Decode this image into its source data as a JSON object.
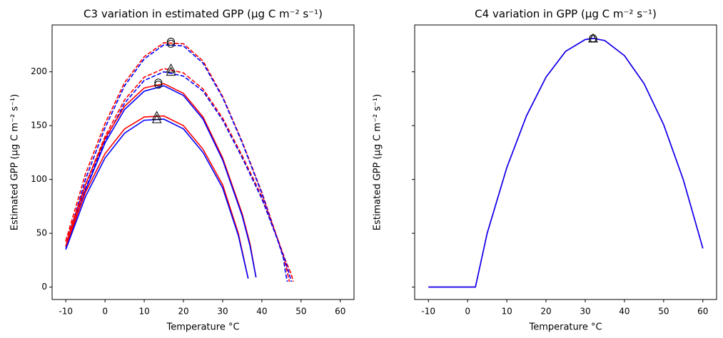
{
  "chart_data": [
    {
      "type": "line",
      "title": "C3 variation in estimated GPP   (μg C m⁻² s⁻¹)",
      "x_label": "Temperature °C",
      "y_label": "Estimated GPP   (μg C m⁻² s⁻¹)",
      "xlim": [
        -13.5,
        63.5
      ],
      "ylim": [
        -11.5,
        243.5
      ],
      "xticks": [
        -10,
        0,
        10,
        20,
        30,
        40,
        50,
        60
      ],
      "yticks": [
        0,
        50,
        100,
        150,
        200
      ],
      "show_ytick_labels": true,
      "series": [
        {
          "color": "#ff0000",
          "dash": true,
          "x": [
            -10,
            -5,
            0,
            5,
            10,
            15,
            20,
            25,
            30,
            35,
            40,
            44,
            46,
            47.5,
            48
          ],
          "values": [
            43,
            105,
            152,
            190,
            214,
            227,
            226,
            210,
            177,
            135,
            88,
            45,
            25,
            12,
            5
          ]
        },
        {
          "color": "#0000ff",
          "dash": true,
          "x": [
            -10,
            -5,
            0,
            5,
            10,
            15,
            20,
            25,
            30,
            35,
            40,
            44,
            46,
            47,
            47.5
          ],
          "values": [
            38,
            100,
            148,
            187,
            212,
            225,
            224,
            208,
            176,
            134,
            87,
            44,
            24,
            12,
            5
          ]
        },
        {
          "color": "#ff0000",
          "dash": true,
          "x": [
            -10,
            -5,
            0,
            5,
            10,
            15,
            20,
            25,
            30,
            35,
            40,
            44,
            45.5,
            46.5,
            47
          ],
          "values": [
            42,
            95,
            140,
            174,
            195,
            203,
            199,
            184,
            157,
            122,
            84,
            45,
            28,
            14,
            5
          ]
        },
        {
          "color": "#0000ff",
          "dash": true,
          "x": [
            -10,
            -5,
            0,
            5,
            10,
            15,
            20,
            25,
            30,
            35,
            40,
            44,
            45.5,
            46,
            46.5
          ],
          "values": [
            37,
            91,
            136,
            171,
            192,
            200,
            196,
            182,
            155,
            120,
            82,
            44,
            27,
            14,
            5
          ]
        },
        {
          "color": "#ff0000",
          "dash": false,
          "x": [
            -10,
            -5,
            0,
            5,
            10,
            15,
            20,
            25,
            30,
            35,
            37,
            38.5
          ],
          "values": [
            38,
            95,
            138,
            168,
            185,
            189,
            180,
            158,
            120,
            68,
            40,
            9
          ]
        },
        {
          "color": "#0000ff",
          "dash": false,
          "x": [
            -10,
            -5,
            0,
            5,
            10,
            15,
            20,
            25,
            30,
            35,
            37,
            38.5
          ],
          "values": [
            35,
            90,
            134,
            165,
            182,
            187,
            178,
            156,
            118,
            66,
            38,
            9
          ]
        },
        {
          "color": "#ff0000",
          "dash": false,
          "x": [
            -10,
            -5,
            0,
            5,
            10,
            15,
            20,
            25,
            30,
            34,
            36.5
          ],
          "values": [
            38,
            88,
            124,
            147,
            158,
            159,
            150,
            128,
            95,
            50,
            8
          ]
        },
        {
          "color": "#0000ff",
          "dash": false,
          "x": [
            -10,
            -5,
            0,
            5,
            10,
            15,
            20,
            25,
            30,
            34,
            36.5
          ],
          "values": [
            35,
            84,
            120,
            143,
            155,
            156,
            147,
            125,
            92,
            48,
            8
          ]
        }
      ],
      "markers": [
        {
          "marker": "circle",
          "x": [
            16.8,
            16.8,
            13.6,
            13.6
          ],
          "values": [
            228,
            226,
            190,
            188
          ]
        },
        {
          "marker": "triangle",
          "x": [
            16.8,
            16.8,
            13.2,
            13.2
          ],
          "values": [
            203,
            200,
            159,
            156
          ]
        }
      ]
    },
    {
      "type": "line",
      "title": "C4 variation in GPP   (μg C m⁻² s⁻¹)",
      "x_label": "Temperature °C",
      "y_label": "Estimated GPP   (μg C m⁻² s⁻¹)",
      "xlim": [
        -13.5,
        63.5
      ],
      "ylim": [
        -11.5,
        243.5
      ],
      "xticks": [
        -10,
        0,
        10,
        20,
        30,
        40,
        50,
        60
      ],
      "yticks": [
        0,
        50,
        100,
        150,
        200
      ],
      "show_ytick_labels": false,
      "series": [
        {
          "color": "#ff0000",
          "dash": false,
          "x": [
            -10,
            2,
            5,
            10,
            15,
            20,
            25,
            30,
            32,
            35,
            40,
            45,
            50,
            55,
            60
          ],
          "values": [
            0,
            0,
            50,
            111,
            159,
            195,
            219,
            230,
            231,
            229,
            215,
            189,
            151,
            100,
            36
          ]
        },
        {
          "color": "#0000ff",
          "dash": false,
          "x": [
            -10,
            2,
            5,
            10,
            15,
            20,
            25,
            30,
            32,
            35,
            40,
            45,
            50,
            55,
            60
          ],
          "values": [
            0,
            0,
            50,
            111,
            159,
            195,
            219,
            230,
            231,
            229,
            215,
            189,
            151,
            100,
            36
          ]
        }
      ],
      "markers": [
        {
          "marker": "circle",
          "x": [
            32,
            32
          ],
          "values": [
            231,
            231
          ]
        },
        {
          "marker": "triangle",
          "x": [
            32,
            32
          ],
          "values": [
            231,
            231
          ]
        }
      ]
    }
  ]
}
